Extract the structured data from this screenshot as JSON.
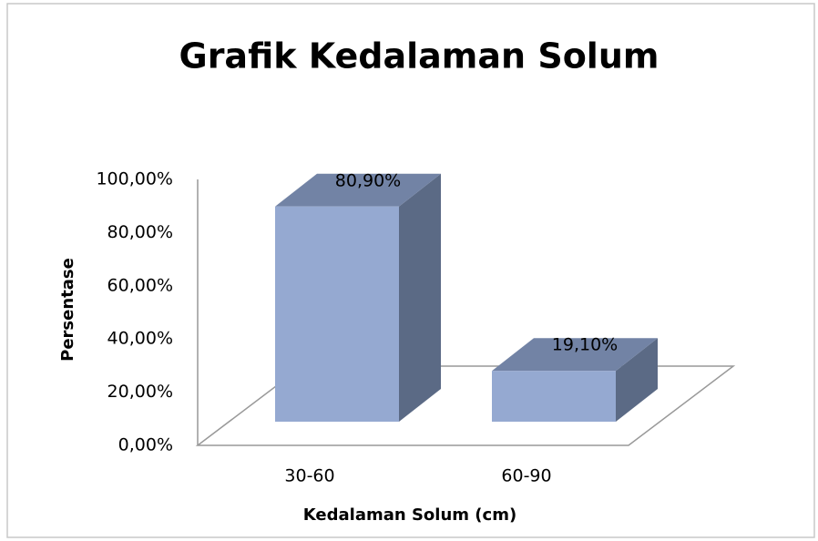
{
  "chart_data": {
    "type": "bar3d",
    "title": "Grafik Kedalaman Solum",
    "x_label": "Kedalaman Solum (cm)",
    "y_label": "Persentase",
    "categories": [
      "30-60",
      "60-90"
    ],
    "values": [
      80.9,
      19.1
    ],
    "value_labels": [
      "80,90%",
      "19,10%"
    ],
    "color": "#95a9d1",
    "ylim": [
      0,
      100
    ],
    "yticks": [
      {
        "value": 0,
        "label": "0,00%"
      },
      {
        "value": 20,
        "label": "20,00%"
      },
      {
        "value": 40,
        "label": "40,00%"
      },
      {
        "value": 60,
        "label": "60,00%"
      },
      {
        "value": 80,
        "label": "80,00%"
      },
      {
        "value": 100,
        "label": "100,00%"
      }
    ]
  }
}
